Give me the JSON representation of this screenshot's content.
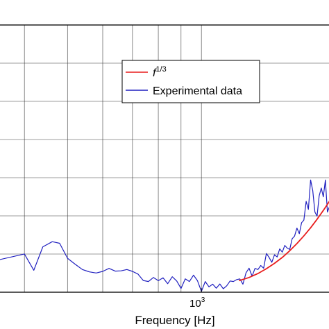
{
  "chart_data": {
    "type": "line",
    "xlabel": "Frequency [Hz]",
    "x_scale": "log",
    "xlim": [
      350,
      1950
    ],
    "ylim": [
      0,
      1
    ],
    "grid": true,
    "legend_position": "top-center",
    "x_ticks": [
      {
        "value": 1000,
        "base": "10",
        "exponent": "3"
      }
    ],
    "series": [
      {
        "name": "Experimental data",
        "color": "#1f1fbf",
        "x": [
          350,
          400,
          420,
          440,
          462,
          480,
          500,
          520,
          540,
          560,
          580,
          600,
          620,
          640,
          660,
          680,
          700,
          720,
          740,
          760,
          780,
          800,
          820,
          840,
          860,
          880,
          900,
          920,
          940,
          960,
          980,
          1000,
          1020,
          1040,
          1060,
          1080,
          1100,
          1120,
          1140,
          1160,
          1180,
          1200,
          1220,
          1240,
          1260,
          1280,
          1300,
          1320,
          1340,
          1360,
          1380,
          1400,
          1420,
          1440,
          1460,
          1480,
          1500,
          1520,
          1540,
          1560,
          1580,
          1600,
          1620,
          1640,
          1660,
          1680,
          1700,
          1720,
          1740,
          1760,
          1780,
          1800,
          1820,
          1840,
          1860,
          1880,
          1900,
          1920,
          1940,
          1950
        ],
        "y": [
          0.121,
          0.143,
          0.082,
          0.17,
          0.189,
          0.183,
          0.127,
          0.105,
          0.085,
          0.076,
          0.072,
          0.078,
          0.089,
          0.079,
          0.08,
          0.085,
          0.078,
          0.068,
          0.044,
          0.04,
          0.055,
          0.043,
          0.054,
          0.032,
          0.058,
          0.042,
          0.014,
          0.05,
          0.04,
          0.064,
          0.043,
          0.003,
          0.04,
          0.02,
          0.03,
          0.015,
          0.031,
          0.013,
          0.024,
          0.042,
          0.04,
          0.047,
          0.05,
          0.03,
          0.073,
          0.09,
          0.06,
          0.089,
          0.085,
          0.1,
          0.09,
          0.145,
          0.13,
          0.112,
          0.14,
          0.132,
          0.162,
          0.15,
          0.175,
          0.165,
          0.16,
          0.2,
          0.21,
          0.24,
          0.219,
          0.26,
          0.27,
          0.34,
          0.31,
          0.42,
          0.38,
          0.3,
          0.285,
          0.36,
          0.39,
          0.357,
          0.42,
          0.3,
          0.32,
          0.31
        ]
      },
      {
        "name": "f^{1/3}",
        "color": "#e81c1c",
        "x": [
          1215,
          1280,
          1340,
          1400,
          1460,
          1520,
          1580,
          1640,
          1700,
          1760,
          1820,
          1880,
          1950
        ],
        "y": [
          0.043,
          0.055,
          0.07,
          0.088,
          0.108,
          0.13,
          0.155,
          0.182,
          0.211,
          0.241,
          0.273,
          0.306,
          0.346
        ]
      }
    ]
  },
  "legend": {
    "items": [
      {
        "label_base": "f",
        "label_exp": "1/3",
        "color": "#e81c1c"
      },
      {
        "label": "Experimental data",
        "color": "#1f1fbf"
      }
    ]
  }
}
